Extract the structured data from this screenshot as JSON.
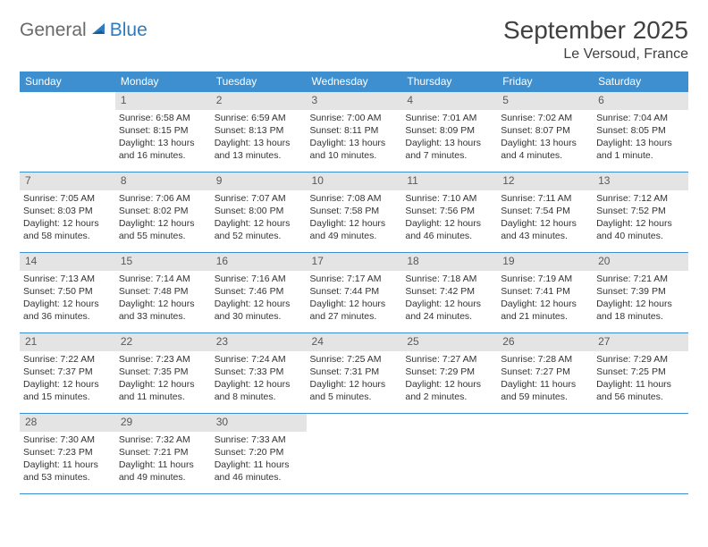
{
  "logo": {
    "general": "General",
    "blue": "Blue"
  },
  "header": {
    "title": "September 2025",
    "location": "Le Versoud, France"
  },
  "dayNames": [
    "Sunday",
    "Monday",
    "Tuesday",
    "Wednesday",
    "Thursday",
    "Friday",
    "Saturday"
  ],
  "colors": {
    "header_bg": "#3e8fd0",
    "header_text": "#ffffff",
    "daynum_bg": "#e4e4e4",
    "daynum_text": "#595959",
    "border": "#3e8fd0",
    "body_text": "#333333",
    "logo_gray": "#6a6a6a",
    "logo_blue": "#2f7bbf"
  },
  "weeks": [
    [
      {
        "n": "",
        "sunrise": "",
        "sunset": "",
        "daylight": ""
      },
      {
        "n": "1",
        "sunrise": "Sunrise: 6:58 AM",
        "sunset": "Sunset: 8:15 PM",
        "daylight": "Daylight: 13 hours and 16 minutes."
      },
      {
        "n": "2",
        "sunrise": "Sunrise: 6:59 AM",
        "sunset": "Sunset: 8:13 PM",
        "daylight": "Daylight: 13 hours and 13 minutes."
      },
      {
        "n": "3",
        "sunrise": "Sunrise: 7:00 AM",
        "sunset": "Sunset: 8:11 PM",
        "daylight": "Daylight: 13 hours and 10 minutes."
      },
      {
        "n": "4",
        "sunrise": "Sunrise: 7:01 AM",
        "sunset": "Sunset: 8:09 PM",
        "daylight": "Daylight: 13 hours and 7 minutes."
      },
      {
        "n": "5",
        "sunrise": "Sunrise: 7:02 AM",
        "sunset": "Sunset: 8:07 PM",
        "daylight": "Daylight: 13 hours and 4 minutes."
      },
      {
        "n": "6",
        "sunrise": "Sunrise: 7:04 AM",
        "sunset": "Sunset: 8:05 PM",
        "daylight": "Daylight: 13 hours and 1 minute."
      }
    ],
    [
      {
        "n": "7",
        "sunrise": "Sunrise: 7:05 AM",
        "sunset": "Sunset: 8:03 PM",
        "daylight": "Daylight: 12 hours and 58 minutes."
      },
      {
        "n": "8",
        "sunrise": "Sunrise: 7:06 AM",
        "sunset": "Sunset: 8:02 PM",
        "daylight": "Daylight: 12 hours and 55 minutes."
      },
      {
        "n": "9",
        "sunrise": "Sunrise: 7:07 AM",
        "sunset": "Sunset: 8:00 PM",
        "daylight": "Daylight: 12 hours and 52 minutes."
      },
      {
        "n": "10",
        "sunrise": "Sunrise: 7:08 AM",
        "sunset": "Sunset: 7:58 PM",
        "daylight": "Daylight: 12 hours and 49 minutes."
      },
      {
        "n": "11",
        "sunrise": "Sunrise: 7:10 AM",
        "sunset": "Sunset: 7:56 PM",
        "daylight": "Daylight: 12 hours and 46 minutes."
      },
      {
        "n": "12",
        "sunrise": "Sunrise: 7:11 AM",
        "sunset": "Sunset: 7:54 PM",
        "daylight": "Daylight: 12 hours and 43 minutes."
      },
      {
        "n": "13",
        "sunrise": "Sunrise: 7:12 AM",
        "sunset": "Sunset: 7:52 PM",
        "daylight": "Daylight: 12 hours and 40 minutes."
      }
    ],
    [
      {
        "n": "14",
        "sunrise": "Sunrise: 7:13 AM",
        "sunset": "Sunset: 7:50 PM",
        "daylight": "Daylight: 12 hours and 36 minutes."
      },
      {
        "n": "15",
        "sunrise": "Sunrise: 7:14 AM",
        "sunset": "Sunset: 7:48 PM",
        "daylight": "Daylight: 12 hours and 33 minutes."
      },
      {
        "n": "16",
        "sunrise": "Sunrise: 7:16 AM",
        "sunset": "Sunset: 7:46 PM",
        "daylight": "Daylight: 12 hours and 30 minutes."
      },
      {
        "n": "17",
        "sunrise": "Sunrise: 7:17 AM",
        "sunset": "Sunset: 7:44 PM",
        "daylight": "Daylight: 12 hours and 27 minutes."
      },
      {
        "n": "18",
        "sunrise": "Sunrise: 7:18 AM",
        "sunset": "Sunset: 7:42 PM",
        "daylight": "Daylight: 12 hours and 24 minutes."
      },
      {
        "n": "19",
        "sunrise": "Sunrise: 7:19 AM",
        "sunset": "Sunset: 7:41 PM",
        "daylight": "Daylight: 12 hours and 21 minutes."
      },
      {
        "n": "20",
        "sunrise": "Sunrise: 7:21 AM",
        "sunset": "Sunset: 7:39 PM",
        "daylight": "Daylight: 12 hours and 18 minutes."
      }
    ],
    [
      {
        "n": "21",
        "sunrise": "Sunrise: 7:22 AM",
        "sunset": "Sunset: 7:37 PM",
        "daylight": "Daylight: 12 hours and 15 minutes."
      },
      {
        "n": "22",
        "sunrise": "Sunrise: 7:23 AM",
        "sunset": "Sunset: 7:35 PM",
        "daylight": "Daylight: 12 hours and 11 minutes."
      },
      {
        "n": "23",
        "sunrise": "Sunrise: 7:24 AM",
        "sunset": "Sunset: 7:33 PM",
        "daylight": "Daylight: 12 hours and 8 minutes."
      },
      {
        "n": "24",
        "sunrise": "Sunrise: 7:25 AM",
        "sunset": "Sunset: 7:31 PM",
        "daylight": "Daylight: 12 hours and 5 minutes."
      },
      {
        "n": "25",
        "sunrise": "Sunrise: 7:27 AM",
        "sunset": "Sunset: 7:29 PM",
        "daylight": "Daylight: 12 hours and 2 minutes."
      },
      {
        "n": "26",
        "sunrise": "Sunrise: 7:28 AM",
        "sunset": "Sunset: 7:27 PM",
        "daylight": "Daylight: 11 hours and 59 minutes."
      },
      {
        "n": "27",
        "sunrise": "Sunrise: 7:29 AM",
        "sunset": "Sunset: 7:25 PM",
        "daylight": "Daylight: 11 hours and 56 minutes."
      }
    ],
    [
      {
        "n": "28",
        "sunrise": "Sunrise: 7:30 AM",
        "sunset": "Sunset: 7:23 PM",
        "daylight": "Daylight: 11 hours and 53 minutes."
      },
      {
        "n": "29",
        "sunrise": "Sunrise: 7:32 AM",
        "sunset": "Sunset: 7:21 PM",
        "daylight": "Daylight: 11 hours and 49 minutes."
      },
      {
        "n": "30",
        "sunrise": "Sunrise: 7:33 AM",
        "sunset": "Sunset: 7:20 PM",
        "daylight": "Daylight: 11 hours and 46 minutes."
      },
      {
        "n": "",
        "sunrise": "",
        "sunset": "",
        "daylight": ""
      },
      {
        "n": "",
        "sunrise": "",
        "sunset": "",
        "daylight": ""
      },
      {
        "n": "",
        "sunrise": "",
        "sunset": "",
        "daylight": ""
      },
      {
        "n": "",
        "sunrise": "",
        "sunset": "",
        "daylight": ""
      }
    ]
  ]
}
